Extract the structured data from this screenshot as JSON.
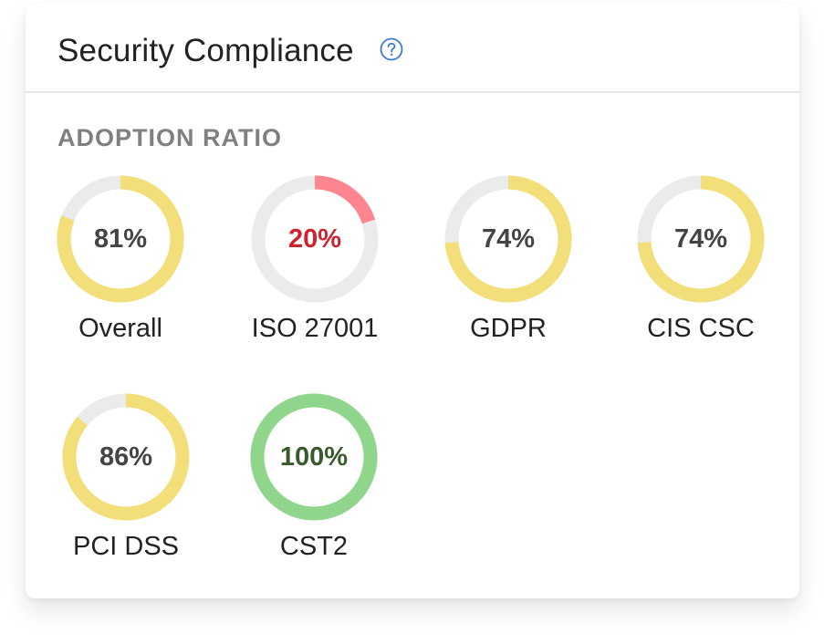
{
  "header": {
    "title": "Security Compliance",
    "help_icon": "question-circle-icon"
  },
  "section": {
    "title": "ADOPTION RATIO"
  },
  "colors": {
    "track": "#ebebeb",
    "warning": "#f2df7a",
    "danger_arc": "#ff8590",
    "danger_text": "#d0212f",
    "success_arc": "#8fd58b",
    "success_text": "#3a5a2b",
    "accent": "#3a7bd5"
  },
  "gauges": [
    {
      "label": "Overall",
      "percent": 81,
      "text": "81%",
      "status": "warning"
    },
    {
      "label": "ISO 27001",
      "percent": 20,
      "text": "20%",
      "status": "danger"
    },
    {
      "label": "GDPR",
      "percent": 74,
      "text": "74%",
      "status": "warning"
    },
    {
      "label": "CIS CSC",
      "percent": 74,
      "text": "74%",
      "status": "warning"
    },
    {
      "label": "PCI DSS",
      "percent": 86,
      "text": "86%",
      "status": "warning"
    },
    {
      "label": "CST2",
      "percent": 100,
      "text": "100%",
      "status": "success"
    }
  ]
}
